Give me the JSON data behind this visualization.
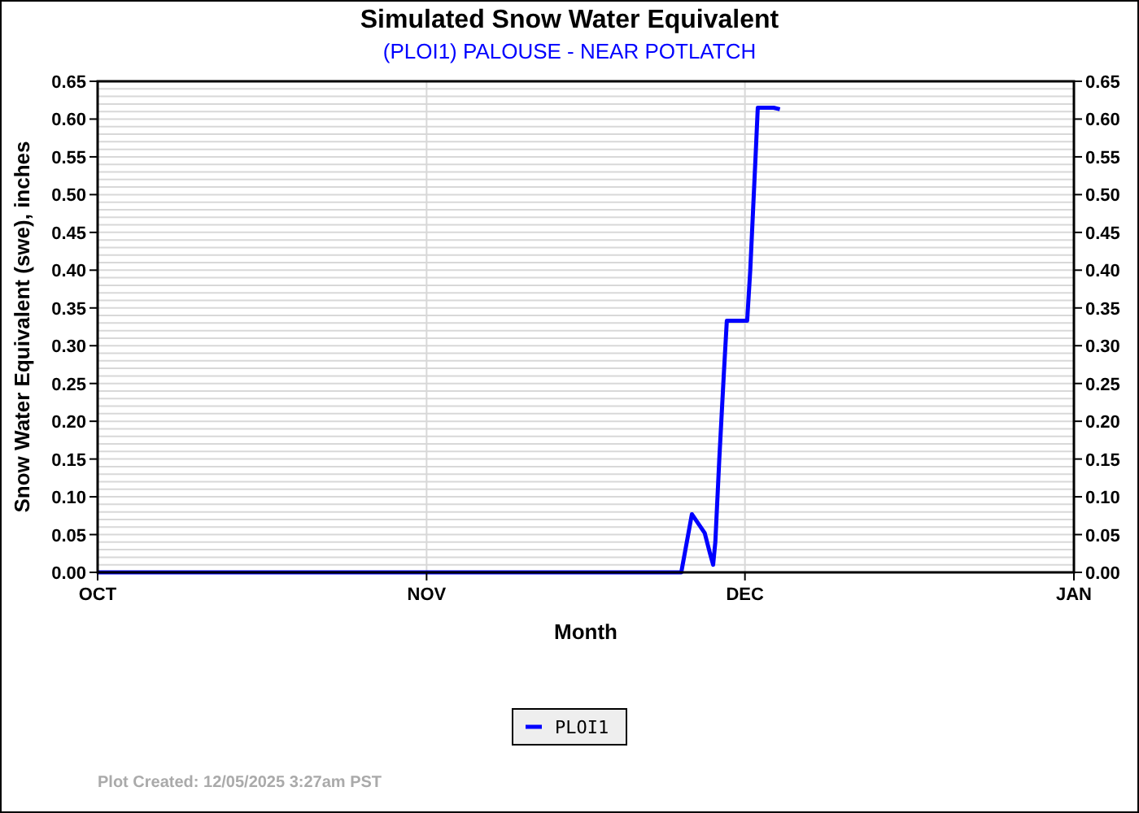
{
  "chart_data": {
    "type": "line",
    "title": "Simulated Snow Water Equivalent",
    "subtitle": "(PLOI1) PALOUSE - NEAR POTLATCH",
    "xlabel": "Month",
    "ylabel": "Snow Water Equivalent (swe),  inches",
    "x": [
      "2025-10-01T00:00",
      "2025-11-25T00:00",
      "2025-11-26T00:00",
      "2025-11-26T14:00",
      "2025-11-27T05:00",
      "2025-11-27T17:00",
      "2025-11-28T00:00",
      "2025-11-28T05:00",
      "2025-11-28T14:00",
      "2025-11-29T00:00",
      "2025-11-29T07:00",
      "2025-12-01T05:00",
      "2025-12-01T12:00",
      "2025-12-02T00:00",
      "2025-12-02T05:00",
      "2025-12-03T17:00",
      "2025-12-04T07:00"
    ],
    "series": [
      {
        "name": "PLOI1",
        "color": "#0000ff",
        "values": [
          0,
          0,
          0.077,
          0.065,
          0.052,
          0.025,
          0.01,
          0.04,
          0.15,
          0.26,
          0.333,
          0.333,
          0.4,
          0.55,
          0.615,
          0.615,
          0.613
        ]
      }
    ],
    "xlim": [
      "2025-10-01",
      "2026-01-01"
    ],
    "xticks": [
      {
        "value": "2025-10-01",
        "label": "OCT"
      },
      {
        "value": "2025-11-01",
        "label": "NOV"
      },
      {
        "value": "2025-12-01",
        "label": "DEC"
      },
      {
        "value": "2026-01-01",
        "label": "JAN"
      }
    ],
    "ylim": [
      0,
      0.65
    ],
    "y2lim": [
      0,
      0.65
    ],
    "yticks": [
      {
        "value": 0,
        "label": "0.00"
      },
      {
        "value": 0.01,
        "label": null
      },
      {
        "value": 0.02,
        "label": null
      },
      {
        "value": 0.03,
        "label": null
      },
      {
        "value": 0.04,
        "label": null
      },
      {
        "value": 0.05,
        "label": "0.05"
      },
      {
        "value": 0.06,
        "label": null
      },
      {
        "value": 0.07,
        "label": null
      },
      {
        "value": 0.08,
        "label": null
      },
      {
        "value": 0.09,
        "label": null
      },
      {
        "value": 0.1,
        "label": "0.10"
      },
      {
        "value": 0.11,
        "label": null
      },
      {
        "value": 0.12,
        "label": null
      },
      {
        "value": 0.13,
        "label": null
      },
      {
        "value": 0.14,
        "label": null
      },
      {
        "value": 0.15,
        "label": "0.15"
      },
      {
        "value": 0.16,
        "label": null
      },
      {
        "value": 0.17,
        "label": null
      },
      {
        "value": 0.18,
        "label": null
      },
      {
        "value": 0.19,
        "label": null
      },
      {
        "value": 0.2,
        "label": "0.20"
      },
      {
        "value": 0.21,
        "label": null
      },
      {
        "value": 0.22,
        "label": null
      },
      {
        "value": 0.23,
        "label": null
      },
      {
        "value": 0.24,
        "label": null
      },
      {
        "value": 0.25,
        "label": "0.25"
      },
      {
        "value": 0.26,
        "label": null
      },
      {
        "value": 0.27,
        "label": null
      },
      {
        "value": 0.28,
        "label": null
      },
      {
        "value": 0.29,
        "label": null
      },
      {
        "value": 0.3,
        "label": "0.30"
      },
      {
        "value": 0.31,
        "label": null
      },
      {
        "value": 0.32,
        "label": null
      },
      {
        "value": 0.33,
        "label": null
      },
      {
        "value": 0.34,
        "label": null
      },
      {
        "value": 0.35,
        "label": "0.35"
      },
      {
        "value": 0.36,
        "label": null
      },
      {
        "value": 0.37,
        "label": null
      },
      {
        "value": 0.38,
        "label": null
      },
      {
        "value": 0.39,
        "label": null
      },
      {
        "value": 0.4,
        "label": "0.40"
      },
      {
        "value": 0.41,
        "label": null
      },
      {
        "value": 0.42,
        "label": null
      },
      {
        "value": 0.43,
        "label": null
      },
      {
        "value": 0.44,
        "label": null
      },
      {
        "value": 0.45,
        "label": "0.45"
      },
      {
        "value": 0.46,
        "label": null
      },
      {
        "value": 0.47,
        "label": null
      },
      {
        "value": 0.48,
        "label": null
      },
      {
        "value": 0.49,
        "label": null
      },
      {
        "value": 0.5,
        "label": "0.50"
      },
      {
        "value": 0.51,
        "label": null
      },
      {
        "value": 0.52,
        "label": null
      },
      {
        "value": 0.53,
        "label": null
      },
      {
        "value": 0.54,
        "label": null
      },
      {
        "value": 0.55,
        "label": "0.55"
      },
      {
        "value": 0.56,
        "label": null
      },
      {
        "value": 0.57,
        "label": null
      },
      {
        "value": 0.58,
        "label": null
      },
      {
        "value": 0.59,
        "label": null
      },
      {
        "value": 0.6,
        "label": "0.60"
      },
      {
        "value": 0.61,
        "label": null
      },
      {
        "value": 0.62,
        "label": null
      },
      {
        "value": 0.63,
        "label": null
      },
      {
        "value": 0.64,
        "label": null
      },
      {
        "value": 0.65,
        "label": "0.65"
      }
    ],
    "y2ticks": [
      {
        "value": 0,
        "label": "0.00"
      },
      {
        "value": 0.05,
        "label": "0.05"
      },
      {
        "value": 0.1,
        "label": "0.10"
      },
      {
        "value": 0.15,
        "label": "0.15"
      },
      {
        "value": 0.2,
        "label": "0.20"
      },
      {
        "value": 0.25,
        "label": "0.25"
      },
      {
        "value": 0.3,
        "label": "0.30"
      },
      {
        "value": 0.35,
        "label": "0.35"
      },
      {
        "value": 0.4,
        "label": "0.40"
      },
      {
        "value": 0.45,
        "label": "0.45"
      },
      {
        "value": 0.5,
        "label": "0.50"
      },
      {
        "value": 0.55,
        "label": "0.55"
      },
      {
        "value": 0.6,
        "label": "0.60"
      },
      {
        "value": 0.65,
        "label": "0.65"
      }
    ],
    "grid": true,
    "legend": "bottom",
    "marker": "none",
    "line_style": "solid",
    "annotations": [
      "Plot Created: 12/05/2025 3:27am PST"
    ]
  }
}
